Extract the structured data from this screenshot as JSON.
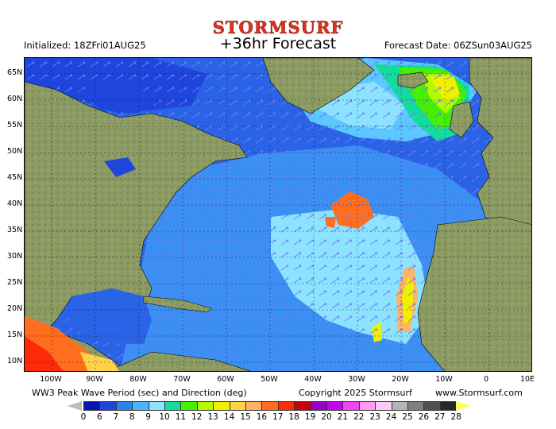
{
  "header": {
    "brand": "STORMSURF",
    "title": "+36hr Forecast",
    "initialized": "Initialized: 18ZFri01AUG25",
    "forecast_date": "Forecast Date: 06ZSun03AUG25"
  },
  "footer": {
    "product": "WW3 Peak Wave Period (sec) and Direction (deg)",
    "copyright": "Copyright 2025 Stormsurf",
    "website": "www.Stormsurf.com"
  },
  "map": {
    "latitude_labels": [
      "65N",
      "60N",
      "55N",
      "50N",
      "45N",
      "40N",
      "35N",
      "30N",
      "25N",
      "20N",
      "15N",
      "10N"
    ],
    "longitude_labels": [
      "100W",
      "90W",
      "80W",
      "70W",
      "60W",
      "50W",
      "40W",
      "30W",
      "20W",
      "10W",
      "0",
      "10E"
    ]
  },
  "legend": {
    "labels": [
      "0",
      "6",
      "7",
      "8",
      "9",
      "10",
      "11",
      "12",
      "13",
      "14",
      "15",
      "16",
      "17",
      "18",
      "19",
      "20",
      "21",
      "22",
      "23",
      "24",
      "25",
      "26",
      "27",
      "28"
    ],
    "colors": [
      "#0a14b4",
      "#1e46dc",
      "#2a82ee",
      "#4ab4ff",
      "#8ce2ff",
      "#14dc9c",
      "#46f000",
      "#b4fa00",
      "#f0f000",
      "#ffd24a",
      "#ffb464",
      "#ff6e1e",
      "#ff2a0a",
      "#c8000a",
      "#9600c8",
      "#c800f0",
      "#f046f0",
      "#ff9cf0",
      "#ffc8f5",
      "#b4b4b4",
      "#808080",
      "#505050",
      "#282828",
      "#ffffff",
      "#ffff50"
    ]
  },
  "colors": {
    "land": "#8b9a62",
    "ocean_deep": "#1e46dc",
    "brand_red": "#e0321e"
  }
}
